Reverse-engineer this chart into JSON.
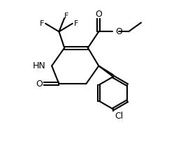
{
  "bg_color": "#ffffff",
  "line_color": "#000000",
  "line_width": 1.5,
  "font_size": 9,
  "labels": {
    "HN": "HN",
    "O_ketone": "O",
    "O_ester1": "O",
    "O_ester2": "O",
    "Cl": "Cl",
    "F1": "F",
    "F2": "F",
    "F3": "F"
  }
}
